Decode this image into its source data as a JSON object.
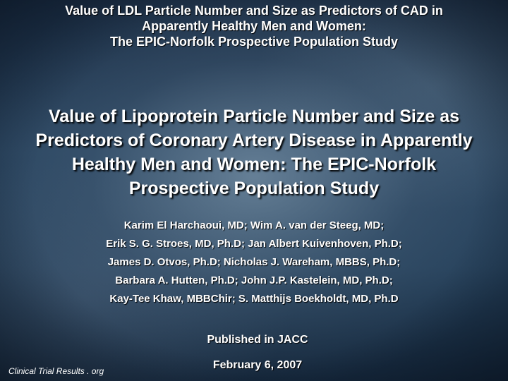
{
  "header": {
    "lines": [
      "Value of LDL Particle Number and Size as Predictors of CAD in",
      "Apparently Healthy Men and Women:",
      "The EPIC-Norfolk Prospective Population Study"
    ]
  },
  "title": {
    "lines": [
      "Value of Lipoprotein Particle Number and Size as",
      "Predictors of Coronary Artery Disease in Apparently",
      "Healthy Men and Women: The EPIC-Norfolk",
      "Prospective Population Study"
    ]
  },
  "authors": {
    "lines": [
      "Karim El Harchaoui, MD; Wim A. van der Steeg, MD;",
      "Erik S. G. Stroes, MD, Ph.D; Jan Albert Kuivenhoven, Ph.D;",
      "James D.  Otvos, Ph.D; Nicholas J. Wareham, MBBS, Ph.D;",
      "Barbara A. Hutten, Ph.D; John J.P. Kastelein, MD, Ph.D;",
      "Kay-Tee Khaw, MBBChir; S. Matthijs Boekholdt, MD, Ph.D"
    ]
  },
  "publication": {
    "journal": "Published in JACC",
    "date": "February 6, 2007"
  },
  "footer": {
    "source": "Clinical Trial Results . org"
  }
}
